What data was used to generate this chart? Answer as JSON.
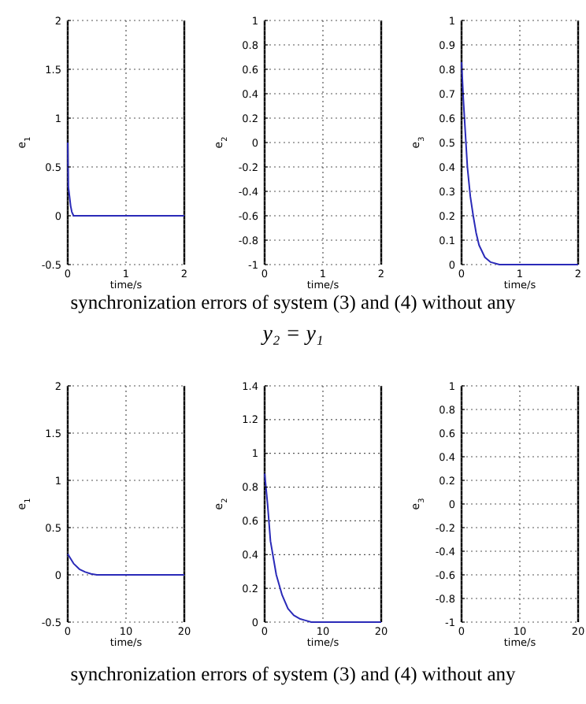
{
  "chart_data": [
    {
      "type": "line",
      "ylabel": "e$_{1}$",
      "xlabel": "time/s",
      "xlim": [
        0,
        2
      ],
      "xticks": [
        0,
        1,
        2
      ],
      "ylim": [
        -0.5,
        2
      ],
      "yticks": [
        -0.5,
        0,
        0.5,
        1,
        1.5,
        2
      ],
      "grid": true,
      "annotations": [
        "synchronization errors of system (3) and (4) without any",
        "y₂ = y₁"
      ],
      "series": [
        {
          "color": "#2a2ab8",
          "x": [
            0,
            0.005,
            0.01,
            0.02,
            0.03,
            0.05,
            0.07,
            0.1,
            2
          ],
          "values": [
            0.75,
            0.5,
            0.3,
            0.25,
            0.2,
            0.1,
            0.04,
            0,
            0
          ]
        }
      ]
    },
    {
      "type": "line",
      "ylabel": "e$_{2}$",
      "xlabel": "time/s",
      "xlim": [
        0,
        2
      ],
      "xticks": [
        0,
        1,
        2
      ],
      "ylim": [
        -1,
        1
      ],
      "yticks": [
        -1,
        -0.8,
        -0.6,
        -0.4,
        -0.2,
        0,
        0.2,
        0.4,
        0.6,
        0.8,
        1
      ],
      "grid": true
    },
    {
      "type": "line",
      "ylabel": "e$_{3}$",
      "xlabel": "time/s",
      "xlim": [
        0,
        2
      ],
      "xticks": [
        0,
        1,
        2
      ],
      "ylim": [
        0,
        1
      ],
      "yticks": [
        0,
        0.1,
        0.2,
        0.3,
        0.4,
        0.5,
        0.6,
        0.7,
        0.8,
        0.9,
        1
      ],
      "grid": true,
      "series": [
        {
          "color": "#2a2ab8",
          "x": [
            0,
            0.03,
            0.1,
            0.15,
            0.2,
            0.25,
            0.3,
            0.4,
            0.5,
            0.65,
            2
          ],
          "values": [
            0.83,
            0.68,
            0.4,
            0.28,
            0.2,
            0.13,
            0.08,
            0.03,
            0.01,
            0,
            0
          ]
        }
      ]
    },
    {
      "type": "line",
      "ylabel": "e$_{1}$",
      "xlabel": "time/s",
      "xlim": [
        0,
        20
      ],
      "xticks": [
        0,
        10,
        20
      ],
      "ylim": [
        -0.5,
        2
      ],
      "yticks": [
        -0.5,
        0,
        0.5,
        1,
        1.5,
        2
      ],
      "grid": true,
      "annotations": [
        "synchronization errors of system (3) and (4) without any"
      ],
      "series": [
        {
          "color": "#2a2ab8",
          "x": [
            0,
            1,
            2,
            3,
            4,
            5,
            20
          ],
          "values": [
            0.22,
            0.12,
            0.06,
            0.03,
            0.01,
            0,
            0
          ]
        }
      ]
    },
    {
      "type": "line",
      "ylabel": "e$_{2}$",
      "xlabel": "time/s",
      "xlim": [
        0,
        20
      ],
      "xticks": [
        0,
        10,
        20
      ],
      "ylim": [
        0,
        1.4
      ],
      "yticks": [
        0,
        0.2,
        0.4,
        0.6,
        0.8,
        1,
        1.2,
        1.4
      ],
      "grid": true,
      "series": [
        {
          "color": "#2a2ab8",
          "x": [
            0,
            0.5,
            1,
            2,
            3,
            4,
            5,
            6,
            7,
            8,
            20
          ],
          "values": [
            0.88,
            0.7,
            0.48,
            0.28,
            0.16,
            0.08,
            0.04,
            0.02,
            0.01,
            0,
            0
          ]
        }
      ]
    },
    {
      "type": "line",
      "ylabel": "e$_{3}$",
      "xlabel": "time/s",
      "xlim": [
        0,
        20
      ],
      "xticks": [
        0,
        10,
        20
      ],
      "ylim": [
        -1,
        1
      ],
      "yticks": [
        -1,
        -0.8,
        -0.6,
        -0.4,
        -0.2,
        0,
        0.2,
        0.4,
        0.6,
        0.8,
        1
      ],
      "grid": true
    }
  ]
}
